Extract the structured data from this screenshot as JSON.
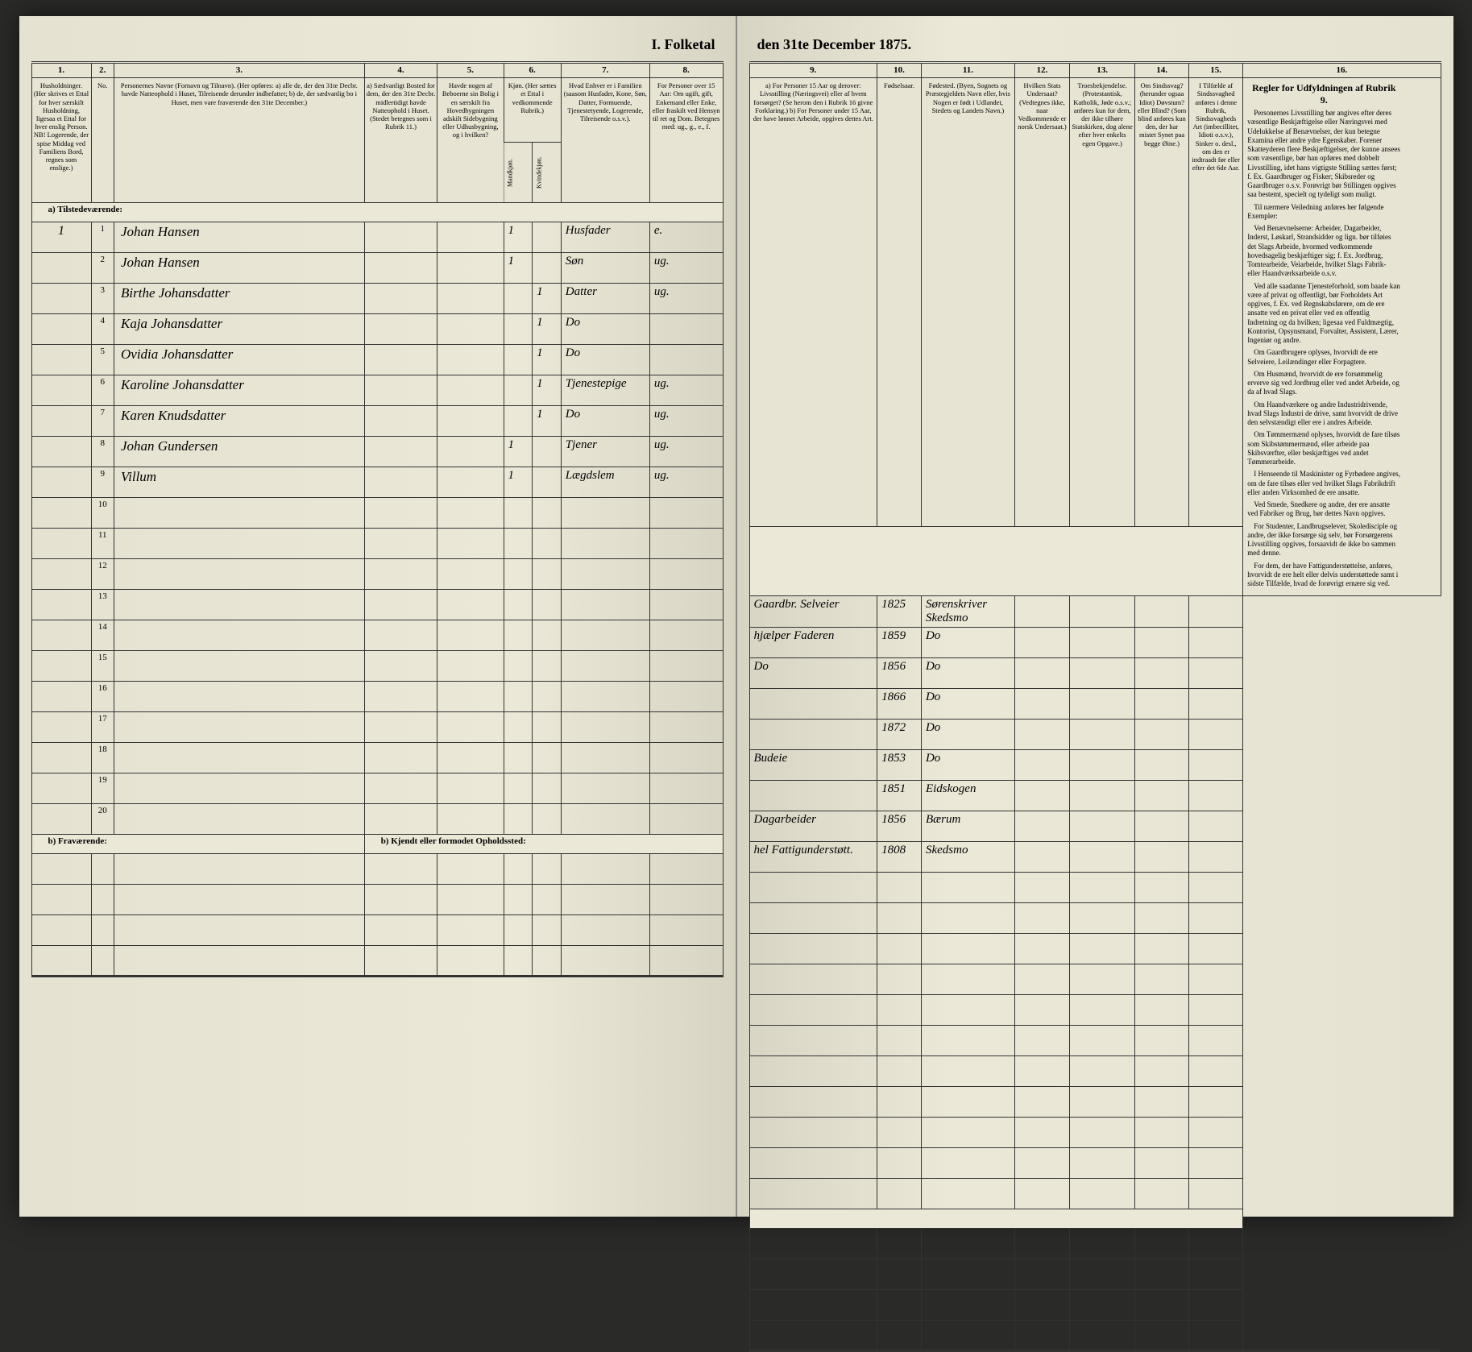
{
  "title": {
    "left": "I. Folketal",
    "right": "den 31te December 1875."
  },
  "columns_left": {
    "nums": [
      "1.",
      "2.",
      "3.",
      "4.",
      "5.",
      "6.",
      "7.",
      "8."
    ],
    "labels": [
      "Husholdninger. (Her skrives et Ettal for hver særskilt Husholdning, ligesaa et Ettal for hver enslig Person. NB! Logerende, der spise Middag ved Familiens Bord, regnes som enslige.)",
      "No.",
      "Personernes Navne (Fornavn og Tilnavn). (Her opføres: a) alle de, der den 31te Decbr. havde Natteophold i Huset, Tilreisende derunder indbefattet; b) de, der sædvanlig bo i Huset, men vare fraværende den 31te December.)",
      "a) Sædvanligt Bosted for dem, der den 31te Decbr. midlertidigt havde Natteophold i Huset. (Stedet betegnes som i Rubrik 11.)",
      "Havde nogen af Beboerne sin Bolig i en særskilt fra Hovedbygningen adskilt Sidebygning eller Udhusbygning, og i hvilken?",
      "Kjøn. (Her sættes et Ettal i vedkommende Rubrik.)",
      "Hvad Enhver er i Familien (saasom Husfader, Kone, Søn, Datter, Formuende, Tjenestetyende, Logerende, Tilreisende o.s.v.).",
      "For Personer over 15 Aar: Om ugift, gift, Enkemand eller Enke, eller fraskilt ved Hensyn til ret og Dom. Betegnes med: ug., g., e., f."
    ],
    "kjon_sub": [
      "Mandkjøn.",
      "Kvindekjøn."
    ]
  },
  "columns_right": {
    "nums": [
      "9.",
      "10.",
      "11.",
      "12.",
      "13.",
      "14.",
      "15.",
      "16."
    ],
    "labels": [
      "a) For Personer 15 Aar og derover: Livsstilling (Næringsvei) eller af hvem forsørget? (Se herom den i Rubrik 16 givne Forklaring.) b) For Personer under 15 Aar, der have lønnet Arbeide, opgives dettes Art.",
      "Fødselsaar.",
      "Fødested. (Byen, Sognets og Præstegjeldets Navn eller, hvis Nogen er født i Udlandet, Stedets og Landets Navn.)",
      "Hvilken Stats Undersaat? (Vedtegnes ikke, naar Vedkommende er norsk Undersaat.)",
      "Troesbekjendelse. (Protestantisk, Katholik, Jøde o.s.v.; anføres kun for dem, der ikke tilhøre Statskirken, dog alene efter hver enkelts egen Opgave.)",
      "Om Sindssvag? (herunder ogsaa Idiot) Døvstum? eller Blind? (Som blind anføres kun den, der har mistet Synet paa begge Øine.)",
      "I Tilfælde af Sindssvaghed anføres i denne Rubrik, Sindssvagheds Art (imbecillitet, Idioti o.s.v.), Sinker o. desl., om den er indtraadt før eller efter det 6de Aar.",
      "Regler for Udfyldningen af Rubrik 9."
    ]
  },
  "rows": [
    {
      "n": "1",
      "hh": "1",
      "name": "Johan Hansen",
      "c5": "",
      "m": "1",
      "k": "",
      "fam": "Husfader",
      "civ": "e.",
      "occ": "Gaardbr. Selveier",
      "yr": "1825",
      "place": "Sørenskriver Skedsmo"
    },
    {
      "n": "2",
      "hh": "",
      "name": "Johan Hansen",
      "c5": "",
      "m": "1",
      "k": "",
      "fam": "Søn",
      "civ": "ug.",
      "occ": "hjælper Faderen",
      "yr": "1859",
      "place": "Do"
    },
    {
      "n": "3",
      "hh": "",
      "name": "Birthe Johansdatter",
      "c5": "",
      "m": "",
      "k": "1",
      "fam": "Datter",
      "civ": "ug.",
      "occ": "Do",
      "yr": "1856",
      "place": "Do"
    },
    {
      "n": "4",
      "hh": "",
      "name": "Kaja Johansdatter",
      "c5": "",
      "m": "",
      "k": "1",
      "fam": "Do",
      "civ": "",
      "occ": "",
      "yr": "1866",
      "place": "Do"
    },
    {
      "n": "5",
      "hh": "",
      "name": "Ovidia Johansdatter",
      "c5": "",
      "m": "",
      "k": "1",
      "fam": "Do",
      "civ": "",
      "occ": "",
      "yr": "1872",
      "place": "Do"
    },
    {
      "n": "6",
      "hh": "",
      "name": "Karoline Johansdatter",
      "c5": "",
      "m": "",
      "k": "1",
      "fam": "Tjenestepige",
      "civ": "ug.",
      "occ": "Budeie",
      "yr": "1853",
      "place": "Do"
    },
    {
      "n": "7",
      "hh": "",
      "name": "Karen Knudsdatter",
      "c5": "",
      "m": "",
      "k": "1",
      "fam": "Do",
      "civ": "ug.",
      "occ": "",
      "yr": "1851",
      "place": "Eidskogen"
    },
    {
      "n": "8",
      "hh": "",
      "name": "Johan Gundersen",
      "c5": "",
      "m": "1",
      "k": "",
      "fam": "Tjener",
      "civ": "ug.",
      "occ": "Dagarbeider",
      "yr": "1856",
      "place": "Bærum"
    },
    {
      "n": "9",
      "hh": "",
      "name": "Villum",
      "c5": "",
      "m": "1",
      "k": "",
      "fam": "Lægdslem",
      "civ": "ug.",
      "occ": "hel Fattigunderstøtt.",
      "yr": "1808",
      "place": "Skedsmo"
    }
  ],
  "empty_rows": [
    "10",
    "11",
    "12",
    "13",
    "14",
    "15",
    "16",
    "17",
    "18",
    "19",
    "20"
  ],
  "section_a": "a) Tilstedeværende:",
  "section_b": "b) Fraværende:",
  "section_b_right": "b) Kjendt eller formodet Opholdssted:",
  "rules": {
    "title": "Regler for Udfyldningen af Rubrik 9.",
    "paras": [
      "Personernes Livsstilling bør angives efter deres væsentlige Beskjæftigelse eller Næringsvei med Udelukkelse af Benævnelser, der kun betegne Examina eller andre ydre Egenskaber. Forener Skatteyderen flere Beskjæftigelser, der kunne ansees som væsentlige, bør han opføres med dobbelt Livsstilling, idet hans vigtigste Stilling sættes først; f. Ex. Gaardbruger og Fisker; Skibsreder og Gaardbruger o.s.v. Forøvrigt bør Stillingen opgives saa bestemt, specielt og tydeligt som muligt.",
      "Til nærmere Veiledning anføres her følgende Exempler:",
      "Ved Benævnelserne: Arbeider, Dagarbeider, Inderst, Løskarl, Strandsidder og lign. bør tilføies det Slags Arbeide, hvormed vedkommende hovedsagelig beskjæftiger sig; f. Ex. Jordbrug, Tomtearbeide, Veiarbeide, hvilket Slags Fabrik- eller Haandværksarbeide o.s.v.",
      "Ved alle saadanne Tjenesteforhold, som baade kan være af privat og offentligt, bør Forholdets Art opgives, f. Ex. ved Regnskabsførere, om de ere ansatte ved en privat eller ved en offentlig Indretning og da hvilken; ligesaa ved Fuldmægtig, Kontorist, Opsynsmand, Forvalter, Assistent, Lærer, Ingeniør og andre.",
      "Om Gaardbrugere oplyses, hvorvidt de ere Selveiere, Leilændinger eller Forpagtere.",
      "Om Husmænd, hvorvidt de ere forsømmelig erverve sig ved Jordbrug eller ved andet Arbeide, og da af hvad Slags.",
      "Om Haandværkere og andre Industridrivende, hvad Slags Industri de drive, samt hvorvidt de drive den selvstændigt eller ere i andres Arbeide.",
      "Om Tømmermænd oplyses, hvorvidt de fare tilsøs som Skibstømmermænd, eller arbeide paa Skibsværfter, eller beskjæftiges ved andet Tømmerarbeide.",
      "I Henseende til Maskinister og Fyrbødere angives, om de fare tilsøs eller ved hvilket Slags Fabrikdrift eller anden Virksomhed de ere ansatte.",
      "Ved Smede, Snedkere og andre, der ere ansatte ved Fabriker og Brug, bør dettes Navn opgives.",
      "For Studenter, Landbrugselever, Skoledisciple og andre, der ikke forsørge sig selv, bør Forsørgerens Livsstilling opgives, forsaavidt de ikke bo sammen med denne.",
      "For dem, der have Fattigunderstøttelse, anføres, hvorvidt de ere helt eller delvis understøttede samt i sidste Tilfælde, hvad de forøvrigt ernære sig ved."
    ]
  },
  "colors": {
    "paper": "#e8e4d4",
    "paper_shadow": "#d8d4c4",
    "ink": "#333333",
    "background": "#2a2a28"
  },
  "typography": {
    "title_fontsize_pt": 14,
    "header_fontsize_pt": 7,
    "body_fontsize_pt": 9,
    "handwriting_family": "cursive"
  }
}
